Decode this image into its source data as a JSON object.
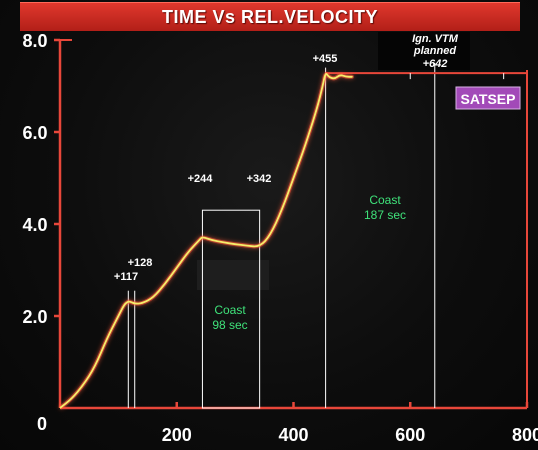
{
  "chart_data": {
    "type": "line",
    "title": "TIME Vs REL.VELOCITY",
    "xlabel": "",
    "ylabel": "",
    "xlim": [
      0,
      800
    ],
    "ylim": [
      0,
      8
    ],
    "x_ticks": [
      "0",
      "200",
      "400",
      "600",
      "800"
    ],
    "y_ticks": [
      "2.0",
      "4.0",
      "6.0",
      "8.0"
    ],
    "grid": false,
    "series": [
      {
        "x": [
          0,
          20,
          40,
          60,
          80,
          100,
          110,
          117,
          122,
          128,
          140,
          160,
          180,
          200,
          220,
          240,
          244,
          260,
          280,
          300,
          320,
          342,
          360,
          380,
          400,
          420,
          440,
          450,
          455,
          460,
          470,
          480,
          490,
          500
        ],
        "values": [
          0.0,
          0.2,
          0.5,
          0.9,
          1.5,
          2.0,
          2.25,
          2.32,
          2.3,
          2.27,
          2.27,
          2.4,
          2.7,
          3.05,
          3.4,
          3.67,
          3.72,
          3.65,
          3.6,
          3.56,
          3.53,
          3.5,
          3.75,
          4.3,
          5.0,
          5.7,
          6.5,
          7.0,
          7.3,
          7.2,
          7.15,
          7.25,
          7.2,
          7.2
        ],
        "color": "#f6ee6a"
      }
    ],
    "planned_level": {
      "value": 7.28,
      "from_x": 455,
      "to_x": 800
    },
    "event_lines": [
      {
        "x": 117,
        "label": "+117"
      },
      {
        "x": 128,
        "label": "+128"
      },
      {
        "x": 455,
        "label": "+455"
      },
      {
        "x": 642,
        "label": "+642"
      }
    ],
    "coast_box": {
      "x_start": 244,
      "x_end": 342,
      "y_low": 0,
      "y_high": 4.3
    },
    "annotations": {
      "t244": "+244",
      "t342": "+342",
      "coast1_line1": "Coast",
      "coast1_line2": "98 sec",
      "coast2_line1": "Coast",
      "coast2_line2": "187 sec",
      "ign_line1": "Ign. VTM",
      "ign_line2": "planned",
      "ign_line3": "+642",
      "satsep": "SATSEP",
      "zero": "0"
    },
    "colors": {
      "axis": "#e8473a",
      "curve": "#f6ee6a",
      "glow": "#ff5a3a",
      "coast_text": "#3fe27a",
      "satsep_bg": "#a24ab8"
    }
  }
}
